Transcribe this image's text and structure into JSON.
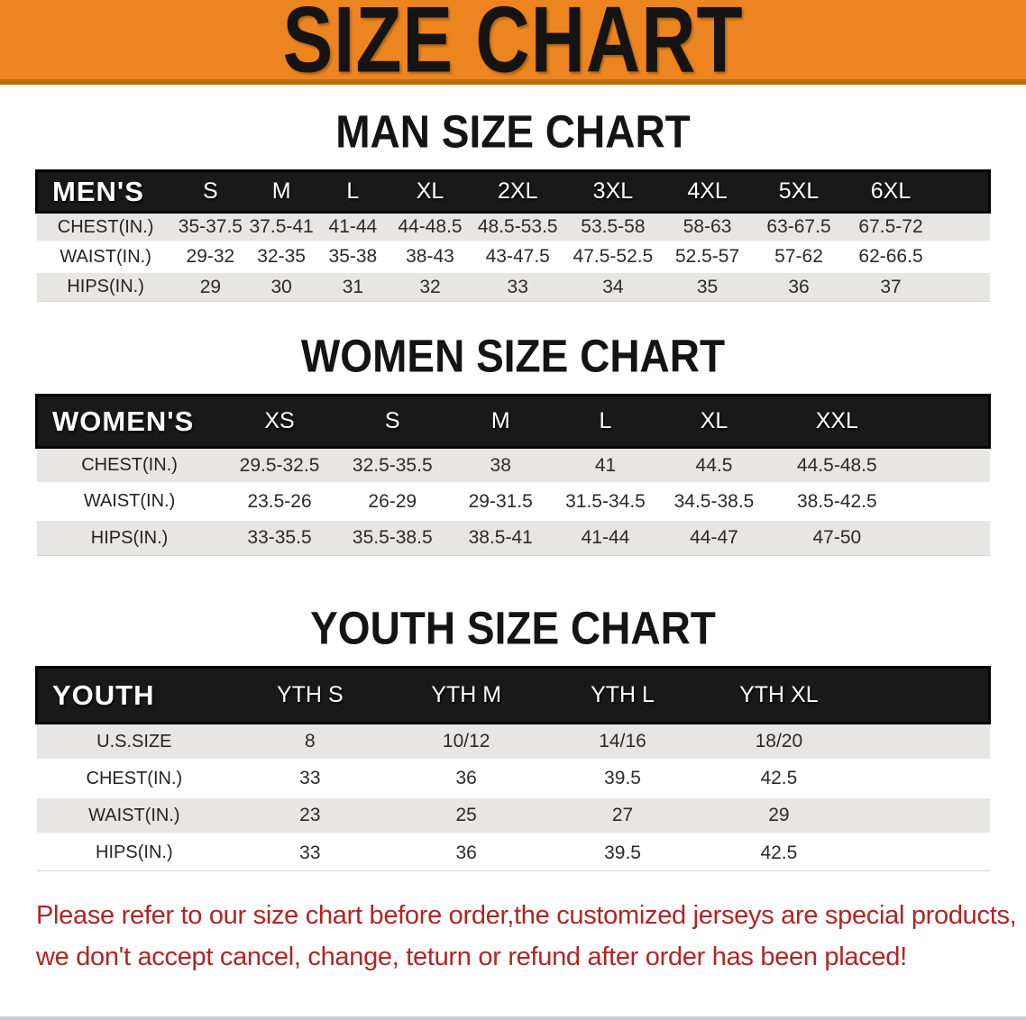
{
  "banner": {
    "title": "SIZE CHART"
  },
  "colors": {
    "banner_orange": "#ec8520",
    "banner_edge_orange": "#c06c10",
    "table_header_black": "#191919",
    "row_gray": "#e7e6e4",
    "notice_red": "#b02524"
  },
  "tables": [
    {
      "section_heading": "MAN SIZE CHART",
      "header_label": "MEN'S",
      "columns": [
        "S",
        "M",
        "L",
        "XL",
        "2XL",
        "3XL",
        "4XL",
        "5XL",
        "6XL"
      ],
      "rows": [
        {
          "label": "CHEST(IN.)",
          "values": [
            "35-37.5",
            "37.5-41",
            "41-44",
            "44-48.5",
            "48.5-53.5",
            "53.5-58",
            "58-63",
            "63-67.5",
            "67.5-72"
          ]
        },
        {
          "label": "WAIST(IN.)",
          "values": [
            "29-32",
            "32-35",
            "35-38",
            "38-43",
            "43-47.5",
            "47.5-52.5",
            "52.5-57",
            "57-62",
            "62-66.5"
          ]
        },
        {
          "label": "HIPS(IN.)",
          "values": [
            "29",
            "30",
            "31",
            "32",
            "33",
            "34",
            "35",
            "36",
            "37"
          ]
        }
      ]
    },
    {
      "section_heading": "WOMEN SIZE CHART",
      "header_label": "WOMEN'S",
      "columns": [
        "XS",
        "S",
        "M",
        "L",
        "XL",
        "XXL"
      ],
      "rows": [
        {
          "label": "CHEST(IN.)",
          "values": [
            "29.5-32.5",
            "32.5-35.5",
            "38",
            "41",
            "44.5",
            "44.5-48.5"
          ]
        },
        {
          "label": "WAIST(IN.)",
          "values": [
            "23.5-26",
            "26-29",
            "29-31.5",
            "31.5-34.5",
            "34.5-38.5",
            "38.5-42.5"
          ]
        },
        {
          "label": "HIPS(IN.)",
          "values": [
            "33-35.5",
            "35.5-38.5",
            "38.5-41",
            "41-44",
            "44-47",
            "47-50"
          ]
        }
      ]
    },
    {
      "section_heading": "YOUTH SIZE CHART",
      "header_label": "YOUTH",
      "columns": [
        "YTH S",
        "YTH M",
        "YTH L",
        "YTH XL"
      ],
      "rows": [
        {
          "label": "U.S.SIZE",
          "values": [
            "8",
            "10/12",
            "14/16",
            "18/20"
          ]
        },
        {
          "label": "CHEST(IN.)",
          "values": [
            "33",
            "36",
            "39.5",
            "42.5"
          ]
        },
        {
          "label": "WAIST(IN.)",
          "values": [
            "23",
            "25",
            "27",
            "29"
          ]
        },
        {
          "label": "HIPS(IN.)",
          "values": [
            "33",
            "36",
            "39.5",
            "42.5"
          ]
        }
      ]
    }
  ],
  "notice": {
    "line1": "Please refer to our size chart before order,the customized jerseys are special products,",
    "line2": "we don't accept cancel, change, teturn or refund after order has been placed!"
  }
}
